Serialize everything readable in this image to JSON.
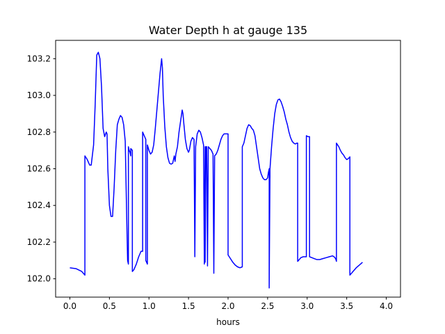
{
  "chart_data": {
    "type": "line",
    "title": "Water Depth h at gauge 135",
    "xlabel": "hours",
    "ylabel": "",
    "xlim": [
      -0.18,
      4.18
    ],
    "ylim": [
      101.9,
      103.3
    ],
    "xticks": [
      {
        "value": 0.0,
        "label": "0.0"
      },
      {
        "value": 0.5,
        "label": "0.5"
      },
      {
        "value": 1.0,
        "label": "1.0"
      },
      {
        "value": 1.5,
        "label": "1.5"
      },
      {
        "value": 2.0,
        "label": "2.0"
      },
      {
        "value": 2.5,
        "label": "2.5"
      },
      {
        "value": 3.0,
        "label": "3.0"
      },
      {
        "value": 3.5,
        "label": "3.5"
      },
      {
        "value": 4.0,
        "label": "4.0"
      }
    ],
    "yticks": [
      {
        "value": 102.0,
        "label": "102.0"
      },
      {
        "value": 102.2,
        "label": "102.2"
      },
      {
        "value": 102.4,
        "label": "102.4"
      },
      {
        "value": 102.6,
        "label": "102.6"
      },
      {
        "value": 102.8,
        "label": "102.8"
      },
      {
        "value": 103.0,
        "label": "103.0"
      },
      {
        "value": 103.2,
        "label": "103.2"
      }
    ],
    "grid": false,
    "series": [
      {
        "color": "#0000ff",
        "points": [
          [
            0.0,
            102.06
          ],
          [
            0.08,
            102.055
          ],
          [
            0.15,
            102.04
          ],
          [
            0.19,
            102.02
          ],
          [
            0.19,
            102.67
          ],
          [
            0.22,
            102.65
          ],
          [
            0.25,
            102.62
          ],
          [
            0.27,
            102.62
          ],
          [
            0.3,
            102.73
          ],
          [
            0.32,
            102.95
          ],
          [
            0.34,
            103.22
          ],
          [
            0.36,
            103.235
          ],
          [
            0.38,
            103.2
          ],
          [
            0.4,
            103.05
          ],
          [
            0.42,
            102.82
          ],
          [
            0.44,
            102.775
          ],
          [
            0.46,
            102.8
          ],
          [
            0.47,
            102.79
          ],
          [
            0.48,
            102.6
          ],
          [
            0.5,
            102.4
          ],
          [
            0.52,
            102.34
          ],
          [
            0.54,
            102.34
          ],
          [
            0.56,
            102.5
          ],
          [
            0.58,
            102.7
          ],
          [
            0.6,
            102.84
          ],
          [
            0.62,
            102.87
          ],
          [
            0.64,
            102.89
          ],
          [
            0.66,
            102.88
          ],
          [
            0.68,
            102.84
          ],
          [
            0.7,
            102.75
          ],
          [
            0.72,
            102.3
          ],
          [
            0.73,
            102.1
          ],
          [
            0.74,
            102.08
          ],
          [
            0.74,
            102.72
          ],
          [
            0.75,
            102.7
          ],
          [
            0.76,
            102.69
          ],
          [
            0.77,
            102.67
          ],
          [
            0.77,
            102.71
          ],
          [
            0.79,
            102.7
          ],
          [
            0.79,
            102.04
          ],
          [
            0.81,
            102.05
          ],
          [
            0.84,
            102.08
          ],
          [
            0.87,
            102.12
          ],
          [
            0.9,
            102.15
          ],
          [
            0.92,
            102.15
          ],
          [
            0.92,
            102.8
          ],
          [
            0.94,
            102.78
          ],
          [
            0.96,
            102.76
          ],
          [
            0.96,
            102.1
          ],
          [
            0.98,
            102.08
          ],
          [
            0.98,
            102.73
          ],
          [
            1.0,
            102.7
          ],
          [
            1.02,
            102.68
          ],
          [
            1.04,
            102.69
          ],
          [
            1.06,
            102.73
          ],
          [
            1.08,
            102.82
          ],
          [
            1.1,
            102.92
          ],
          [
            1.12,
            103.02
          ],
          [
            1.14,
            103.12
          ],
          [
            1.16,
            103.2
          ],
          [
            1.17,
            103.15
          ],
          [
            1.18,
            103.0
          ],
          [
            1.2,
            102.83
          ],
          [
            1.22,
            102.72
          ],
          [
            1.24,
            102.66
          ],
          [
            1.26,
            102.63
          ],
          [
            1.28,
            102.625
          ],
          [
            1.3,
            102.63
          ],
          [
            1.32,
            102.67
          ],
          [
            1.33,
            102.64
          ],
          [
            1.34,
            102.68
          ],
          [
            1.36,
            102.72
          ],
          [
            1.38,
            102.8
          ],
          [
            1.4,
            102.86
          ],
          [
            1.42,
            102.92
          ],
          [
            1.43,
            102.9
          ],
          [
            1.44,
            102.85
          ],
          [
            1.46,
            102.76
          ],
          [
            1.48,
            102.71
          ],
          [
            1.5,
            102.69
          ],
          [
            1.51,
            102.7
          ],
          [
            1.53,
            102.75
          ],
          [
            1.55,
            102.77
          ],
          [
            1.57,
            102.76
          ],
          [
            1.58,
            102.12
          ],
          [
            1.59,
            102.72
          ],
          [
            1.61,
            102.79
          ],
          [
            1.63,
            102.81
          ],
          [
            1.65,
            102.8
          ],
          [
            1.67,
            102.77
          ],
          [
            1.69,
            102.73
          ],
          [
            1.7,
            102.08
          ],
          [
            1.71,
            102.72
          ],
          [
            1.71,
            102.09
          ],
          [
            1.72,
            102.72
          ],
          [
            1.73,
            102.72
          ],
          [
            1.74,
            102.07
          ],
          [
            1.75,
            102.72
          ],
          [
            1.77,
            102.71
          ],
          [
            1.79,
            102.7
          ],
          [
            1.81,
            102.68
          ],
          [
            1.82,
            102.03
          ],
          [
            1.83,
            102.67
          ],
          [
            1.85,
            102.68
          ],
          [
            1.87,
            102.7
          ],
          [
            1.89,
            102.73
          ],
          [
            1.91,
            102.76
          ],
          [
            1.93,
            102.78
          ],
          [
            1.95,
            102.79
          ],
          [
            1.97,
            102.79
          ],
          [
            2.0,
            102.79
          ],
          [
            2.0,
            102.13
          ],
          [
            2.03,
            102.11
          ],
          [
            2.06,
            102.09
          ],
          [
            2.09,
            102.075
          ],
          [
            2.12,
            102.065
          ],
          [
            2.15,
            102.06
          ],
          [
            2.18,
            102.065
          ],
          [
            2.18,
            102.72
          ],
          [
            2.2,
            102.74
          ],
          [
            2.22,
            102.78
          ],
          [
            2.24,
            102.82
          ],
          [
            2.26,
            102.84
          ],
          [
            2.28,
            102.835
          ],
          [
            2.3,
            102.82
          ],
          [
            2.32,
            102.81
          ],
          [
            2.34,
            102.78
          ],
          [
            2.36,
            102.72
          ],
          [
            2.38,
            102.66
          ],
          [
            2.4,
            102.6
          ],
          [
            2.42,
            102.57
          ],
          [
            2.44,
            102.55
          ],
          [
            2.46,
            102.54
          ],
          [
            2.48,
            102.54
          ],
          [
            2.5,
            102.55
          ],
          [
            2.51,
            102.58
          ],
          [
            2.52,
            102.6
          ],
          [
            2.52,
            101.95
          ],
          [
            2.53,
            102.6
          ],
          [
            2.55,
            102.72
          ],
          [
            2.57,
            102.82
          ],
          [
            2.59,
            102.9
          ],
          [
            2.61,
            102.95
          ],
          [
            2.63,
            102.975
          ],
          [
            2.65,
            102.98
          ],
          [
            2.67,
            102.965
          ],
          [
            2.69,
            102.94
          ],
          [
            2.71,
            102.91
          ],
          [
            2.73,
            102.87
          ],
          [
            2.75,
            102.84
          ],
          [
            2.77,
            102.8
          ],
          [
            2.79,
            102.77
          ],
          [
            2.81,
            102.75
          ],
          [
            2.83,
            102.74
          ],
          [
            2.85,
            102.735
          ],
          [
            2.87,
            102.74
          ],
          [
            2.88,
            102.74
          ],
          [
            2.88,
            102.095
          ],
          [
            2.9,
            102.105
          ],
          [
            2.92,
            102.115
          ],
          [
            2.95,
            102.12
          ],
          [
            2.98,
            102.12
          ],
          [
            2.99,
            102.12
          ],
          [
            2.99,
            102.78
          ],
          [
            3.01,
            102.775
          ],
          [
            3.03,
            102.775
          ],
          [
            3.03,
            102.12
          ],
          [
            3.06,
            102.115
          ],
          [
            3.09,
            102.11
          ],
          [
            3.12,
            102.105
          ],
          [
            3.16,
            102.105
          ],
          [
            3.2,
            102.11
          ],
          [
            3.24,
            102.115
          ],
          [
            3.28,
            102.12
          ],
          [
            3.32,
            102.125
          ],
          [
            3.34,
            102.12
          ],
          [
            3.36,
            102.11
          ],
          [
            3.37,
            102.095
          ],
          [
            3.37,
            102.74
          ],
          [
            3.4,
            102.72
          ],
          [
            3.42,
            102.7
          ],
          [
            3.44,
            102.685
          ],
          [
            3.46,
            102.675
          ],
          [
            3.48,
            102.66
          ],
          [
            3.5,
            102.65
          ],
          [
            3.52,
            102.655
          ],
          [
            3.54,
            102.665
          ],
          [
            3.54,
            102.02
          ],
          [
            3.58,
            102.04
          ],
          [
            3.62,
            102.06
          ],
          [
            3.66,
            102.075
          ],
          [
            3.7,
            102.09
          ]
        ]
      }
    ]
  }
}
